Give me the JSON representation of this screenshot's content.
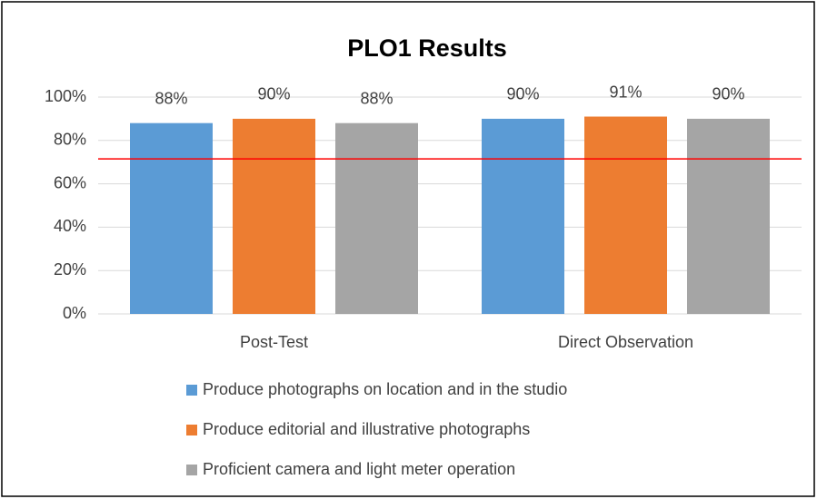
{
  "chart_data": {
    "type": "bar",
    "title": "PLO1 Results",
    "categories": [
      "Post-Test",
      "Direct Observation"
    ],
    "series": [
      {
        "name": "Produce photographs on location and in the studio",
        "color": "#5b9bd5",
        "values": [
          88,
          90
        ],
        "value_labels": [
          "88%",
          "90%"
        ]
      },
      {
        "name": "Produce editorial and illustrative photographs",
        "color": "#ed7d31",
        "values": [
          90,
          91
        ],
        "value_labels": [
          "90%",
          "91%"
        ]
      },
      {
        "name": "Proficient camera and light meter operation",
        "color": "#a5a5a5",
        "values": [
          88,
          90
        ],
        "value_labels": [
          "88%",
          "90%"
        ]
      }
    ],
    "ylim": [
      0,
      100
    ],
    "yticks": [
      {
        "value": 0,
        "label": "0%"
      },
      {
        "value": 20,
        "label": "20%"
      },
      {
        "value": 40,
        "label": "40%"
      },
      {
        "value": 60,
        "label": "60%"
      },
      {
        "value": 80,
        "label": "80%"
      },
      {
        "value": 100,
        "label": "100%"
      }
    ],
    "grid": true,
    "legend": "bottom",
    "reference_line": {
      "value": 71.5,
      "color": "#ff0000"
    }
  }
}
